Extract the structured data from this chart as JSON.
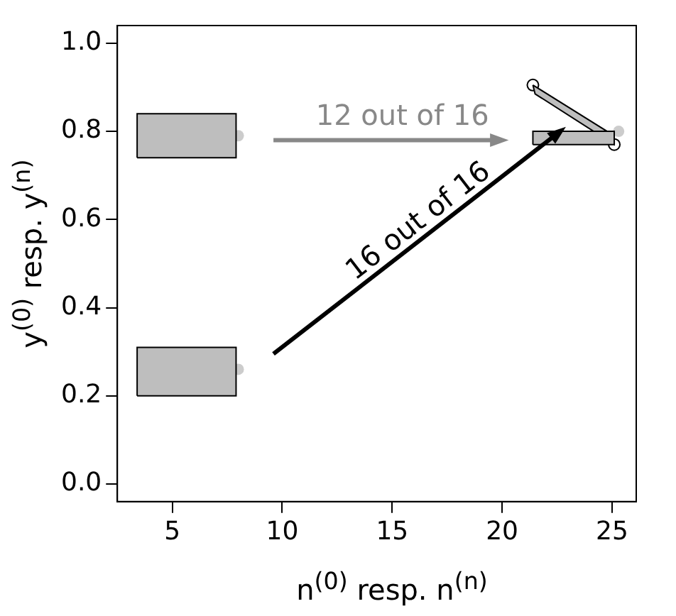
{
  "chart_data": {
    "type": "scatter",
    "xlabel": "n$^{(0)}$ resp. n$^{(n)}$",
    "ylabel": "y$^{(0)}$ resp. y$^{(n)}$",
    "xlim": [
      2.5,
      26.1
    ],
    "ylim": [
      -0.04,
      1.04
    ],
    "xticks": [
      5,
      10,
      15,
      20,
      25
    ],
    "yticks": [
      {
        "value": 0,
        "label": "0.0"
      },
      {
        "value": 0.2,
        "label": "0.2"
      },
      {
        "value": 0.4,
        "label": "0.4"
      },
      {
        "value": 0.6,
        "label": "0.6"
      },
      {
        "value": 0.8,
        "label": "0.8"
      },
      {
        "value": 1,
        "label": "1.0"
      }
    ],
    "grid": false,
    "legend": false,
    "series": [
      {
        "type": "area",
        "color": "#bebebe",
        "x": [
          3.4,
          7.9,
          7.9,
          3.4,
          3.4
        ],
        "values": [
          0.2,
          0.2,
          0.31,
          0.31,
          0.2
        ]
      },
      {
        "type": "area",
        "color": "#bebebe",
        "x": [
          3.4,
          7.9,
          7.9,
          3.4,
          3.4
        ],
        "values": [
          0.74,
          0.74,
          0.84,
          0.84,
          0.74
        ]
      },
      {
        "type": "area",
        "color": "#bebebe",
        "x": [
          21.4,
          25.1,
          25.1,
          21.4,
          21.4
        ],
        "values": [
          0.77,
          0.77,
          0.8,
          0.8,
          0.77
        ]
      },
      {
        "type": "area",
        "color": "#bebebe",
        "x": [
          21.4,
          25.1,
          25.1,
          21.5,
          21.4
        ],
        "values": [
          0.905,
          0.79,
          0.77,
          0.885,
          0.905
        ]
      },
      {
        "color": "#cccccc",
        "x": [
          8.0,
          8.0,
          25.3
        ],
        "values": [
          0.26,
          0.79,
          0.8
        ]
      },
      {
        "marker": "circle",
        "color": "#000000",
        "x": [
          21.4,
          25.1
        ],
        "values": [
          0.905,
          0.77
        ]
      }
    ],
    "annotations": [
      "12 out of 16",
      "16 out of 16"
    ]
  }
}
